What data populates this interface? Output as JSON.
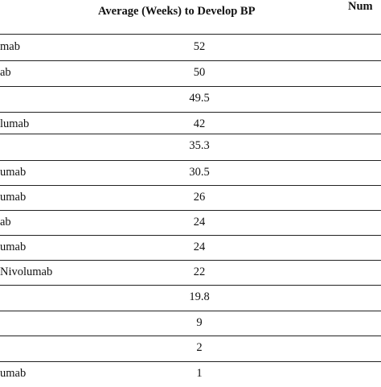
{
  "table": {
    "headers": {
      "average_weeks": "Average (Weeks) to Develop BP",
      "number_partial": "Num"
    },
    "rows": [
      {
        "drug": "mab",
        "weeks": "52"
      },
      {
        "drug": "ab",
        "weeks": "50"
      },
      {
        "drug": "",
        "weeks": "49.5"
      },
      {
        "drug": "lumab",
        "weeks": "42"
      },
      {
        "drug": "",
        "weeks": "35.3"
      },
      {
        "drug": "umab",
        "weeks": "30.5"
      },
      {
        "drug": "umab",
        "weeks": "26"
      },
      {
        "drug": "ab",
        "weeks": "24"
      },
      {
        "drug": "umab",
        "weeks": "24"
      },
      {
        "drug": "Nivolumab",
        "weeks": "22"
      },
      {
        "drug": "",
        "weeks": "19.8"
      },
      {
        "drug": "",
        "weeks": "9"
      },
      {
        "drug": "",
        "weeks": "2"
      },
      {
        "drug": "umab",
        "weeks": "1"
      }
    ]
  }
}
